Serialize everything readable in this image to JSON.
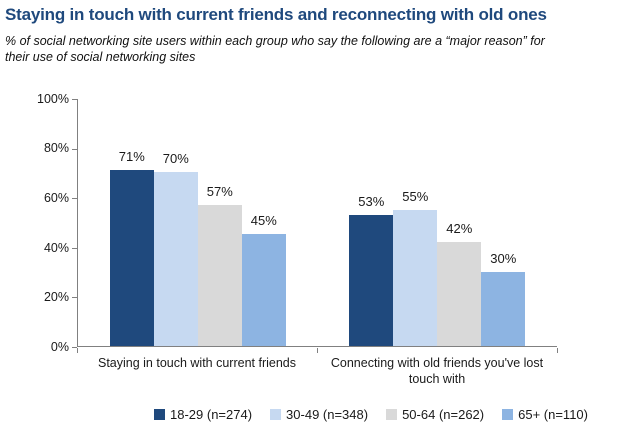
{
  "header": {
    "title": "Staying in touch with current friends and reconnecting with old ones",
    "subtitle_lines": [
      "% of social networking site users within each group who say the following are a “major reason” for",
      "their use of social networking sites"
    ]
  },
  "colors": {
    "title_text": "#1F497D",
    "axis_line": "#808080",
    "label_text": "#1a1a1a"
  },
  "chart_data": {
    "type": "bar",
    "title": "Staying in touch with current friends and reconnecting with old ones",
    "subtitle": "% of social networking site users within each group who say the following are a “major reason” for their use of social networking sites",
    "categories": [
      "Staying in touch with current friends",
      "Connecting with old friends you've lost touch with"
    ],
    "series": [
      {
        "name": "18-29 (n=274)",
        "color": "#1F497D",
        "values": [
          71,
          53
        ]
      },
      {
        "name": "30-49 (n=348)",
        "color": "#C6D9F1",
        "values": [
          70,
          55
        ]
      },
      {
        "name": "50-64 (n=262)",
        "color": "#D9D9D9",
        "values": [
          57,
          42
        ]
      },
      {
        "name": "65+ (n=110)",
        "color": "#8DB4E2",
        "values": [
          45,
          30
        ]
      }
    ],
    "xlabel": "",
    "ylabel": "",
    "ylim": [
      0,
      100
    ],
    "yticks": [
      "0%",
      "20%",
      "40%",
      "60%",
      "80%",
      "100%"
    ],
    "value_labels": true,
    "value_label_suffix": "%",
    "grid": false,
    "legend_position": "bottom"
  }
}
